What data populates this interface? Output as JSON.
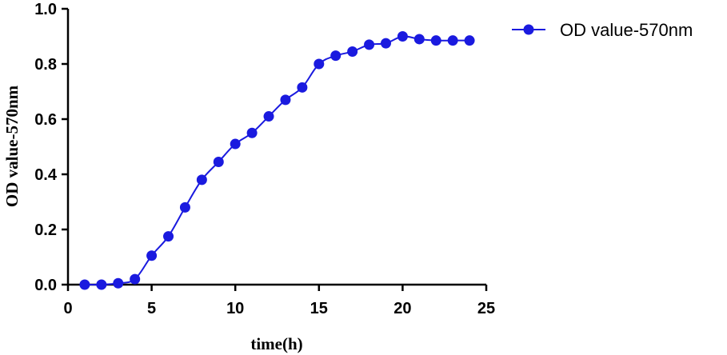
{
  "chart_data": {
    "type": "line",
    "xlabel": "time(h)",
    "ylabel": "OD value-570nm",
    "xlim": [
      0,
      25
    ],
    "ylim": [
      0,
      1.0
    ],
    "x_ticks": [
      "0",
      "5",
      "10",
      "15",
      "20",
      "25"
    ],
    "y_ticks": [
      "0.0",
      "0.2",
      "0.4",
      "0.6",
      "0.8",
      "1.0"
    ],
    "grid": false,
    "legend_position": "top-right",
    "series": [
      {
        "name": "OD value-570nm",
        "color": "#1a1adf",
        "marker": "circle",
        "x": [
          1,
          2,
          3,
          4,
          5,
          6,
          7,
          8,
          9,
          10,
          11,
          12,
          13,
          14,
          15,
          16,
          17,
          18,
          19,
          20,
          21,
          22,
          23,
          24
        ],
        "y": [
          0.0,
          0.0,
          0.005,
          0.02,
          0.105,
          0.175,
          0.28,
          0.38,
          0.445,
          0.51,
          0.55,
          0.61,
          0.67,
          0.715,
          0.8,
          0.83,
          0.845,
          0.87,
          0.875,
          0.9,
          0.89,
          0.885,
          0.885,
          0.885
        ]
      }
    ]
  }
}
